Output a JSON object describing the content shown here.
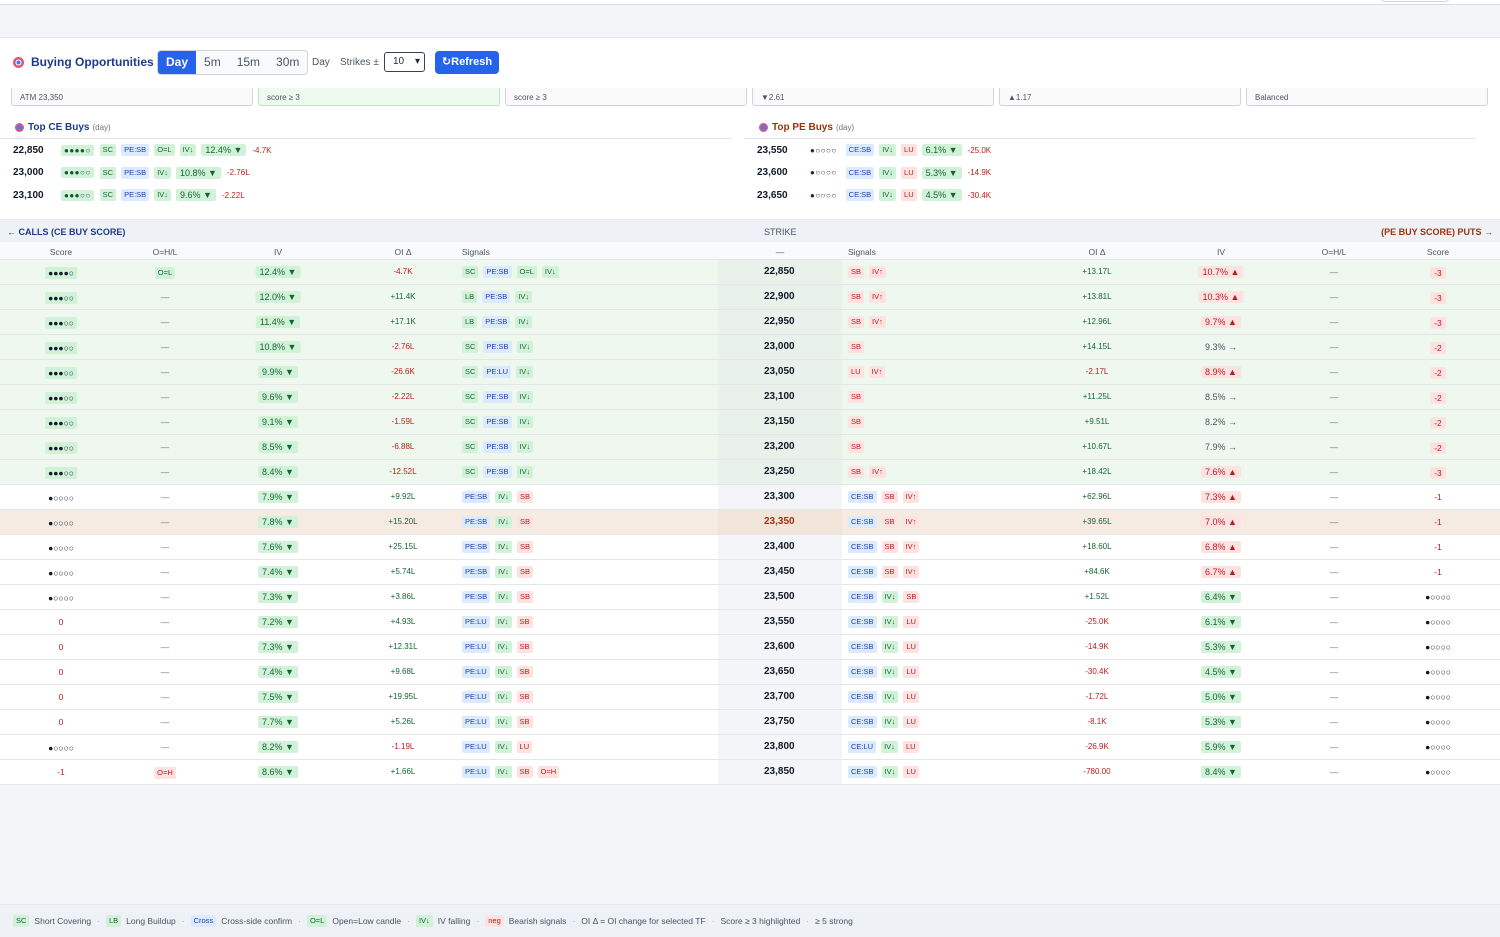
{
  "header": {
    "title": "Buying Opportunities",
    "timeframes": [
      "Day",
      "5m",
      "15m",
      "30m"
    ],
    "active_timeframe": "Day",
    "day_label": "Day",
    "strikes_label": "Strikes ±",
    "strikes_value": "10",
    "refresh_label": "↻Refresh"
  },
  "cards": [
    "ATM 23,350",
    "score ≥ 3",
    "score ≥ 3",
    "▼2.61",
    "▲1.17",
    "Balanced"
  ],
  "top_ce": {
    "title": "Top CE Buys",
    "tf": "(day)",
    "rows": [
      {
        "strike": "22,850",
        "dots": "●●●●○",
        "tags": [
          "SC",
          "PE:SB",
          "O=L",
          "IV↓"
        ],
        "iv": "12.4% ▼",
        "oi": "-4.7K"
      },
      {
        "strike": "23,000",
        "dots": "●●●○○",
        "tags": [
          "SC",
          "PE:SB",
          "IV↓"
        ],
        "iv": "10.8% ▼",
        "oi": "-2.76L"
      },
      {
        "strike": "23,100",
        "dots": "●●●○○",
        "tags": [
          "SC",
          "PE:SB",
          "IV↓"
        ],
        "iv": "9.6% ▼",
        "oi": "-2.22L"
      }
    ]
  },
  "top_pe": {
    "title": "Top PE Buys",
    "tf": "(day)",
    "rows": [
      {
        "strike": "23,550",
        "dots": "●○○○○",
        "tags": [
          "CE:SB",
          "IV↓",
          "LU"
        ],
        "iv": "6.1% ▼",
        "oi": "-25.0K"
      },
      {
        "strike": "23,600",
        "dots": "●○○○○",
        "tags": [
          "CE:SB",
          "IV↓",
          "LU"
        ],
        "iv": "5.3% ▼",
        "oi": "-14.9K"
      },
      {
        "strike": "23,650",
        "dots": "●○○○○",
        "tags": [
          "CE:SB",
          "IV↓",
          "LU"
        ],
        "iv": "4.5% ▼",
        "oi": "-30.4K"
      }
    ]
  },
  "chain": {
    "calls_label": "← CALLS (CE BUY SCORE)",
    "strike_label": "STRIKE",
    "puts_label": "(PE BUY SCORE) PUTS →",
    "col_headers": {
      "score": "Score",
      "ohl": "O=H/L",
      "iv": "IV",
      "oi": "OI Δ",
      "signals": "Signals",
      "dash": "—",
      "psignals": "Signals",
      "poi": "OI Δ",
      "piv": "IV",
      "pohl": "O=H/L",
      "pscore": "Score"
    },
    "rows": [
      {
        "hi": true,
        "cs": "●●●●○",
        "csg": true,
        "cohl": "O=L",
        "civ": "12.4% ▼",
        "civc": "g",
        "coi": "-4.7K",
        "csig": [
          "SC",
          "PE:SB",
          "O=L",
          "IV↓"
        ],
        "strike": "22,850",
        "psig": [
          "SB",
          "IV↑"
        ],
        "poi": "+13.17L",
        "piv": "10.7% ▲",
        "pivc": "r",
        "pohl": "—",
        "ps": "-3",
        "psb": true
      },
      {
        "hi": true,
        "cs": "●●●○○",
        "cohl": "—",
        "civ": "12.0% ▼",
        "civc": "g",
        "coi": "+11.4K",
        "csig": [
          "LB",
          "PE:SB",
          "IV↓"
        ],
        "strike": "22,900",
        "psig": [
          "SB",
          "IV↑"
        ],
        "poi": "+13.81L",
        "piv": "10.3% ▲",
        "pivc": "r",
        "pohl": "—",
        "ps": "-3",
        "psb": true
      },
      {
        "hi": true,
        "cs": "●●●○○",
        "cohl": "—",
        "civ": "11.4% ▼",
        "civc": "g",
        "coi": "+17.1K",
        "csig": [
          "LB",
          "PE:SB",
          "IV↓"
        ],
        "strike": "22,950",
        "psig": [
          "SB",
          "IV↑"
        ],
        "poi": "+12.96L",
        "piv": "9.7% ▲",
        "pivc": "r",
        "pohl": "—",
        "ps": "-3",
        "psb": true
      },
      {
        "hi": true,
        "cs": "●●●○○",
        "csg": true,
        "cohl": "—",
        "civ": "10.8% ▼",
        "civc": "g",
        "coi": "-2.76L",
        "csig": [
          "SC",
          "PE:SB",
          "IV↓"
        ],
        "strike": "23,000",
        "psig": [
          "SB"
        ],
        "poi": "+14.15L",
        "piv": "9.3% →",
        "pivc": "n",
        "pohl": "—",
        "ps": "-2",
        "psb": true
      },
      {
        "hi": true,
        "cs": "●●●○○",
        "cohl": "—",
        "civ": "9.9% ▼",
        "civc": "g",
        "coi": "-26.6K",
        "csig": [
          "SC",
          "PE:LU",
          "IV↓"
        ],
        "strike": "23,050",
        "psig": [
          "LU",
          "IV↑"
        ],
        "poi": "-2.17L",
        "piv": "8.9% ▲",
        "pivc": "r",
        "pohl": "—",
        "ps": "-2",
        "psb": true
      },
      {
        "hi": true,
        "cs": "●●●○○",
        "csg": true,
        "cohl": "—",
        "civ": "9.6% ▼",
        "civc": "g",
        "coi": "-2.22L",
        "csig": [
          "SC",
          "PE:SB",
          "IV↓"
        ],
        "strike": "23,100",
        "psig": [
          "SB"
        ],
        "poi": "+11.25L",
        "piv": "8.5% →",
        "pivc": "n",
        "pohl": "—",
        "ps": "-2",
        "psb": true
      },
      {
        "hi": true,
        "cs": "●●●○○",
        "csg": true,
        "cohl": "—",
        "civ": "9.1% ▼",
        "civc": "g",
        "coi": "-1.59L",
        "csig": [
          "SC",
          "PE:SB",
          "IV↓"
        ],
        "strike": "23,150",
        "psig": [
          "SB"
        ],
        "poi": "+9.51L",
        "piv": "8.2% →",
        "pivc": "n",
        "pohl": "—",
        "ps": "-2",
        "psb": true
      },
      {
        "hi": true,
        "cs": "●●●○○",
        "csg": true,
        "cohl": "—",
        "civ": "8.5% ▼",
        "civc": "g",
        "coi": "-6.88L",
        "csig": [
          "SC",
          "PE:SB",
          "IV↓"
        ],
        "strike": "23,200",
        "psig": [
          "SB"
        ],
        "poi": "+10.67L",
        "piv": "7.9% →",
        "pivc": "n",
        "pohl": "—",
        "ps": "-2",
        "psb": true
      },
      {
        "hi": true,
        "cs": "●●●○○",
        "cohl": "—",
        "civ": "8.4% ▼",
        "civc": "g",
        "coi": "-12.52L",
        "csig": [
          "SC",
          "PE:SB",
          "IV↓"
        ],
        "strike": "23,250",
        "psig": [
          "SB",
          "IV↑"
        ],
        "poi": "+18.42L",
        "piv": "7.6% ▲",
        "pivc": "r",
        "pohl": "—",
        "ps": "-3",
        "psb": true
      },
      {
        "cs": "●○○○○",
        "cohl": "—",
        "civ": "7.9% ▼",
        "civc": "g",
        "coi": "+9.92L",
        "csig": [
          "PE:SB",
          "IV↓",
          "SB"
        ],
        "strike": "23,300",
        "psig": [
          "CE:SB",
          "SB",
          "IV↑"
        ],
        "poi": "+62.96L",
        "piv": "7.3% ▲",
        "pivc": "r",
        "pohl": "—",
        "ps": "-1"
      },
      {
        "atm": true,
        "cs": "●○○○○",
        "cohl": "—",
        "civ": "7.8% ▼",
        "civc": "g",
        "coi": "+15.20L",
        "csig": [
          "PE:SB",
          "IV↓",
          "SB"
        ],
        "strike": "23,350",
        "psig": [
          "CE:SB",
          "SB",
          "IV↑"
        ],
        "poi": "+39.65L",
        "piv": "7.0% ▲",
        "pivc": "r",
        "pohl": "—",
        "ps": "-1"
      },
      {
        "cs": "●○○○○",
        "cohl": "—",
        "civ": "7.6% ▼",
        "civc": "g",
        "coi": "+25.15L",
        "csig": [
          "PE:SB",
          "IV↓",
          "SB"
        ],
        "strike": "23,400",
        "psig": [
          "CE:SB",
          "SB",
          "IV↑"
        ],
        "poi": "+18.60L",
        "piv": "6.8% ▲",
        "pivc": "r",
        "pohl": "—",
        "ps": "-1"
      },
      {
        "cs": "●○○○○",
        "cohl": "—",
        "civ": "7.4% ▼",
        "civc": "g",
        "coi": "+5.74L",
        "csig": [
          "PE:SB",
          "IV↓",
          "SB"
        ],
        "strike": "23,450",
        "psig": [
          "CE:SB",
          "SB",
          "IV↑"
        ],
        "poi": "+84.6K",
        "piv": "6.7% ▲",
        "pivc": "r",
        "pohl": "—",
        "ps": "-1"
      },
      {
        "cs": "●○○○○",
        "cohl": "—",
        "civ": "7.3% ▼",
        "civc": "g",
        "coi": "+3.86L",
        "csig": [
          "PE:SB",
          "IV↓",
          "SB"
        ],
        "strike": "23,500",
        "psig": [
          "CE:SB",
          "IV↓",
          "SB"
        ],
        "poi": "+1.52L",
        "piv": "6.4% ▼",
        "pivc": "g",
        "pohl": "—",
        "ps": "●○○○○"
      },
      {
        "cs": "0",
        "csneg": true,
        "cohl": "—",
        "civ": "7.2% ▼",
        "civc": "g",
        "coi": "+4.93L",
        "csig": [
          "PE:LU",
          "IV↓",
          "SB"
        ],
        "strike": "23,550",
        "psig": [
          "CE:SB",
          "IV↓",
          "LU"
        ],
        "poi": "-25.0K",
        "piv": "6.1% ▼",
        "pivc": "g",
        "pohl": "—",
        "ps": "●○○○○"
      },
      {
        "cs": "0",
        "csneg": true,
        "cohl": "—",
        "civ": "7.3% ▼",
        "civc": "g",
        "coi": "+12.31L",
        "csig": [
          "PE:LU",
          "IV↓",
          "SB"
        ],
        "strike": "23,600",
        "psig": [
          "CE:SB",
          "IV↓",
          "LU"
        ],
        "poi": "-14.9K",
        "piv": "5.3% ▼",
        "pivc": "g",
        "pohl": "—",
        "ps": "●○○○○"
      },
      {
        "cs": "0",
        "csneg": true,
        "cohl": "—",
        "civ": "7.4% ▼",
        "civc": "g",
        "coi": "+9.68L",
        "csig": [
          "PE:LU",
          "IV↓",
          "SB"
        ],
        "strike": "23,650",
        "psig": [
          "CE:SB",
          "IV↓",
          "LU"
        ],
        "poi": "-30.4K",
        "piv": "4.5% ▼",
        "pivc": "g",
        "pohl": "—",
        "ps": "●○○○○"
      },
      {
        "cs": "0",
        "csneg": true,
        "cohl": "—",
        "civ": "7.5% ▼",
        "civc": "g",
        "coi": "+19.95L",
        "csig": [
          "PE:LU",
          "IV↓",
          "SB"
        ],
        "strike": "23,700",
        "psig": [
          "CE:SB",
          "IV↓",
          "LU"
        ],
        "poi": "-1.72L",
        "piv": "5.0% ▼",
        "pivc": "g",
        "pohl": "—",
        "ps": "●○○○○"
      },
      {
        "cs": "0",
        "csneg": true,
        "cohl": "—",
        "civ": "7.7% ▼",
        "civc": "g",
        "coi": "+5.26L",
        "csig": [
          "PE:LU",
          "IV↓",
          "SB"
        ],
        "strike": "23,750",
        "psig": [
          "CE:SB",
          "IV↓",
          "LU"
        ],
        "poi": "-8.1K",
        "piv": "5.3% ▼",
        "pivc": "g",
        "pohl": "—",
        "ps": "●○○○○"
      },
      {
        "cs": "●○○○○",
        "cohl": "—",
        "civ": "8.2% ▼",
        "civc": "g",
        "coi": "-1.19L",
        "csig": [
          "PE:LU",
          "IV↓",
          "LU"
        ],
        "strike": "23,800",
        "psig": [
          "CE:LU",
          "IV↓",
          "LU"
        ],
        "poi": "-26.9K",
        "piv": "5.9% ▼",
        "pivc": "g",
        "pohl": "—",
        "ps": "●○○○○"
      },
      {
        "cs": "-1",
        "csneg": true,
        "cohl": "O=H",
        "cohlr": true,
        "civ": "8.6% ▼",
        "civc": "g",
        "coi": "+1.66L",
        "csig": [
          "PE:LU",
          "IV↓",
          "SB",
          "O=H"
        ],
        "strike": "23,850",
        "psig": [
          "CE:SB",
          "IV↓",
          "LU"
        ],
        "poi": "-780.00",
        "piv": "8.4% ▼",
        "pivc": "g",
        "pohl": "—",
        "ps": "●○○○○"
      }
    ]
  },
  "footer": {
    "items": [
      {
        "tag": "SC",
        "text": "Short Covering",
        "color": "green"
      },
      {
        "tag": "LB",
        "text": "Long Buildup",
        "color": "green"
      },
      {
        "tag": "Cross",
        "text": "Cross-side confirm",
        "color": "blue"
      },
      {
        "tag": "O=L",
        "text": "Open=Low candle",
        "color": "green"
      },
      {
        "tag": "IV↓",
        "text": "IV falling",
        "color": "green"
      },
      {
        "tag": "neg",
        "text": "Bearish signals",
        "color": "red"
      }
    ],
    "notes": [
      "OI Δ = OI change for selected TF",
      "Score ≥ 3 highlighted",
      "≥ 5 strong"
    ]
  }
}
